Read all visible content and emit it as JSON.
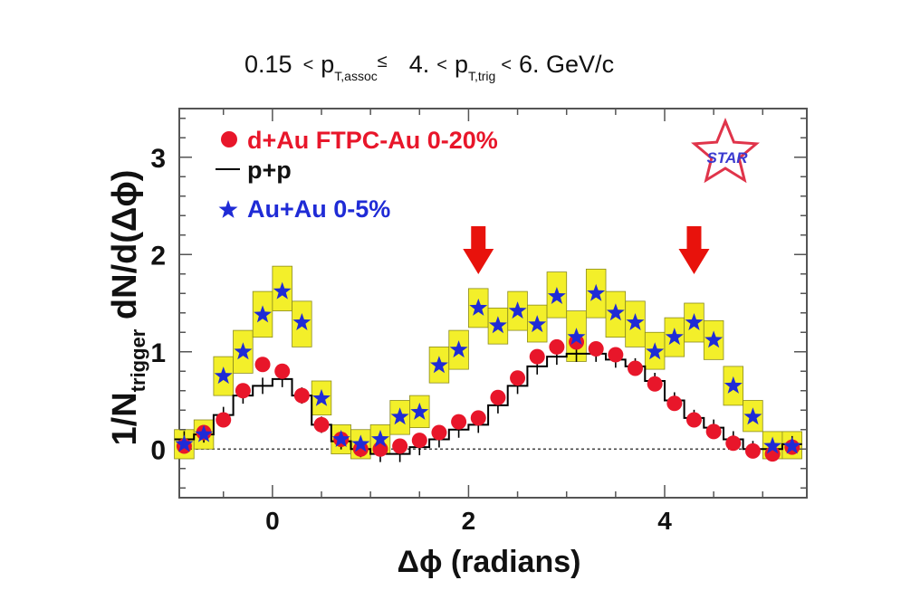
{
  "chart_data": {
    "type": "scatter",
    "title_parts": {
      "left_value": "0.15",
      "lt1": "<",
      "p1": "p",
      "sub1": "T,assoc",
      "le1": "≤",
      "mid_value": "4.",
      "lt2": "<",
      "p2": "p",
      "sub2": "T,trig",
      "lt3": "<",
      "right_value": "6. GeV/c"
    },
    "xlabel": "Δϕ (radians)",
    "ylabel_parts": {
      "pre": "1/N",
      "sub": "trigger",
      "post": " dN/d(Δϕ)"
    },
    "xlim": [
      -0.95,
      5.45
    ],
    "ylim": [
      -0.5,
      3.5
    ],
    "x_major_ticks": [
      0,
      2,
      4
    ],
    "x_tick_labels": [
      "0",
      "2",
      "4"
    ],
    "y_major_ticks": [
      0,
      1,
      2,
      3
    ],
    "y_tick_labels": [
      "0",
      "1",
      "2",
      "3"
    ],
    "zero_line": "dotted",
    "legend_placement": "top-left",
    "logo_text": "STAR",
    "arrows_x": [
      2.1,
      4.3
    ],
    "colors": {
      "dau": "#e8162a",
      "pp": "#000000",
      "auau": "#1f2bd6",
      "band": "#f3ef2a",
      "arrow": "#e8120c",
      "logo": "#e0344a",
      "logo_text": "#3a3ad0"
    },
    "series": [
      {
        "name": "d+Au FTPC-Au 0-20%",
        "marker": "circle",
        "x": [
          -0.9,
          -0.7,
          -0.5,
          -0.3,
          -0.1,
          0.1,
          0.3,
          0.5,
          0.7,
          0.9,
          1.1,
          1.3,
          1.5,
          1.7,
          1.9,
          2.1,
          2.3,
          2.5,
          2.7,
          2.9,
          3.1,
          3.3,
          3.5,
          3.7,
          3.9,
          4.1,
          4.3,
          4.5,
          4.7,
          4.9,
          5.1,
          5.3
        ],
        "values": [
          0.03,
          0.17,
          0.3,
          0.6,
          0.87,
          0.8,
          0.55,
          0.25,
          0.1,
          0.0,
          0.0,
          0.03,
          0.09,
          0.17,
          0.28,
          0.32,
          0.53,
          0.73,
          0.95,
          1.05,
          1.1,
          1.03,
          0.97,
          0.83,
          0.67,
          0.47,
          0.3,
          0.18,
          0.06,
          -0.02,
          -0.05,
          0.02
        ]
      },
      {
        "name": "p+p",
        "marker": "step",
        "x": [
          -0.9,
          -0.7,
          -0.5,
          -0.3,
          -0.1,
          0.1,
          0.3,
          0.5,
          0.7,
          0.9,
          1.1,
          1.3,
          1.5,
          1.7,
          1.9,
          2.1,
          2.3,
          2.5,
          2.7,
          2.9,
          3.1,
          3.3,
          3.5,
          3.7,
          3.9,
          4.1,
          4.3,
          4.5,
          4.7,
          4.9,
          5.1,
          5.3
        ],
        "values": [
          0.1,
          0.15,
          0.35,
          0.55,
          0.65,
          0.72,
          0.55,
          0.25,
          0.08,
          0.0,
          -0.05,
          -0.05,
          0.02,
          0.1,
          0.2,
          0.25,
          0.45,
          0.65,
          0.85,
          0.95,
          0.98,
          0.98,
          0.92,
          0.85,
          0.7,
          0.5,
          0.32,
          0.22,
          0.1,
          0.0,
          0.0,
          0.05
        ]
      },
      {
        "name": "Au+Au 0-5%",
        "marker": "star",
        "x": [
          -0.9,
          -0.7,
          -0.5,
          -0.3,
          -0.1,
          0.1,
          0.3,
          0.5,
          0.7,
          0.9,
          1.1,
          1.3,
          1.5,
          1.7,
          1.9,
          2.1,
          2.3,
          2.5,
          2.7,
          2.9,
          3.1,
          3.3,
          3.5,
          3.7,
          3.9,
          4.1,
          4.3,
          4.5,
          4.7,
          4.9,
          5.1,
          5.3
        ],
        "values": [
          0.05,
          0.15,
          0.75,
          1.0,
          1.38,
          1.62,
          1.3,
          0.52,
          0.1,
          0.05,
          0.1,
          0.33,
          0.38,
          0.86,
          1.02,
          1.45,
          1.27,
          1.42,
          1.28,
          1.57,
          1.15,
          1.6,
          1.4,
          1.3,
          1.0,
          1.15,
          1.3,
          1.12,
          0.65,
          0.33,
          0.03,
          0.03
        ],
        "band_low": [
          -0.1,
          0.0,
          0.55,
          0.78,
          1.15,
          1.42,
          1.05,
          0.35,
          -0.05,
          -0.1,
          -0.05,
          0.15,
          0.22,
          0.68,
          0.82,
          1.25,
          1.08,
          1.22,
          1.1,
          1.35,
          0.9,
          1.35,
          1.15,
          1.05,
          0.82,
          0.95,
          1.1,
          0.92,
          0.45,
          0.18,
          -0.1,
          -0.1
        ],
        "band_high": [
          0.2,
          0.3,
          0.95,
          1.22,
          1.62,
          1.88,
          1.52,
          0.7,
          0.25,
          0.2,
          0.25,
          0.5,
          0.55,
          1.05,
          1.22,
          1.65,
          1.45,
          1.62,
          1.48,
          1.82,
          1.42,
          1.85,
          1.62,
          1.52,
          1.2,
          1.35,
          1.5,
          1.32,
          0.85,
          0.5,
          0.18,
          0.18
        ]
      }
    ]
  }
}
